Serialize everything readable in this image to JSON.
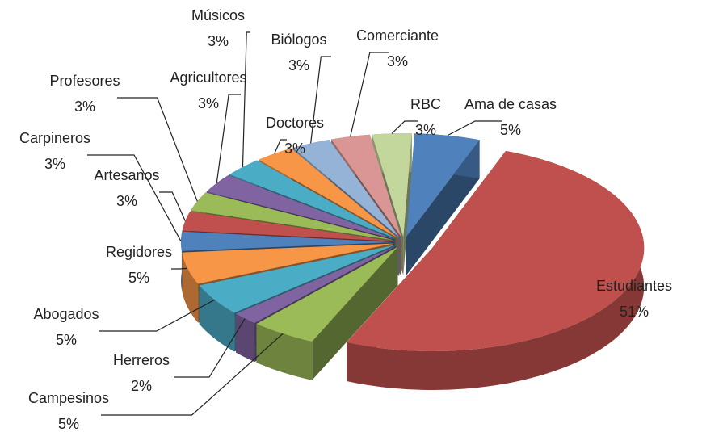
{
  "chart_data": {
    "type": "pie3d",
    "categories": [
      "Ama de casas",
      "Estudiantes",
      "Campesinos",
      "Herreros",
      "Abogados",
      "Regidores",
      "Carpineros",
      "Artesanos",
      "Profesores",
      "Agricultores",
      "Músicos",
      "Doctores",
      "Biólogos",
      "Comerciante",
      "RBC"
    ],
    "values": [
      5,
      51,
      5,
      2,
      5,
      5,
      3,
      3,
      3,
      3,
      3,
      3,
      3,
      3,
      3
    ],
    "value_labels": [
      "5%",
      "51%",
      "5%",
      "2%",
      "5%",
      "5%",
      "3%",
      "3%",
      "3%",
      "3%",
      "3%",
      "3%",
      "3%",
      "3%",
      "3%"
    ],
    "colors": [
      "#4F81BD",
      "#C0504D",
      "#9BBB59",
      "#8064A2",
      "#4BACC6",
      "#F79646",
      "#4F81BD",
      "#C0504D",
      "#9BBB59",
      "#8064A2",
      "#4BACC6",
      "#F79646",
      "#95B3D7",
      "#D99694",
      "#C3D69B"
    ]
  }
}
